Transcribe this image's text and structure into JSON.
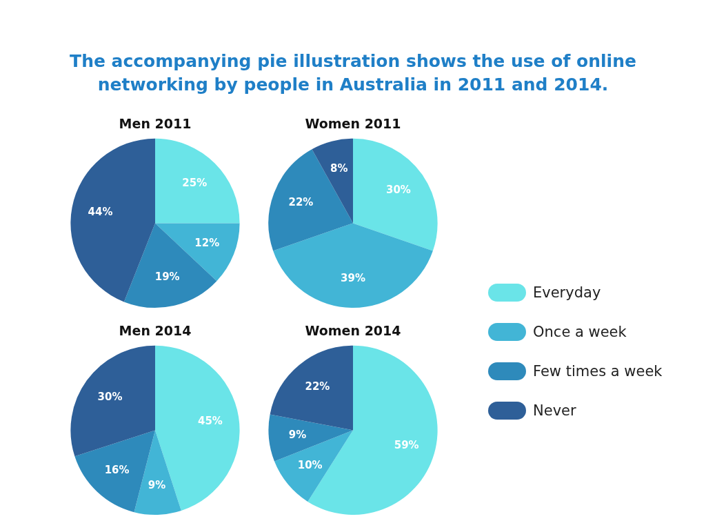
{
  "chart_data": [
    {
      "type": "pie",
      "title": "Men 2011",
      "annotations": [
        "The accompanying pie illustration shows the use of online networking by people in Australia in 2011 and 2014."
      ],
      "legend": "right",
      "categories": [
        "Everyday",
        "Once a week",
        "Few times a week",
        "Never"
      ],
      "values": [
        25,
        12,
        19,
        44
      ],
      "value_labels": [
        "25%",
        "12%",
        "19%",
        "44%"
      ],
      "colors": [
        "#6ae4e8",
        "#42b5d6",
        "#2e8abb",
        "#2e5f98"
      ]
    },
    {
      "type": "pie",
      "title": "Women 2011",
      "categories": [
        null,
        null,
        null,
        null
      ],
      "values": [
        30,
        39,
        22,
        8
      ],
      "value_labels": [
        "30%",
        "39%",
        "22%",
        "8%"
      ],
      "colors": [
        "#6ae4e8",
        "#42b5d6",
        "#2e8abb",
        "#2e5f98"
      ]
    },
    {
      "type": "pie",
      "title": "Men 2014",
      "categories": [
        null,
        null,
        null,
        null
      ],
      "values": [
        45,
        9,
        16,
        30
      ],
      "value_labels": [
        "45%",
        "9%",
        "16%",
        "30%"
      ],
      "colors": [
        "#6ae4e8",
        "#42b5d6",
        "#2e8abb",
        "#2e5f98"
      ]
    },
    {
      "type": "pie",
      "title": "Women 2014",
      "categories": [
        null,
        null,
        null,
        null
      ],
      "values": [
        59,
        10,
        9,
        22
      ],
      "value_labels": [
        "59%",
        "10%",
        "9%",
        "22%"
      ],
      "colors": [
        "#6ae4e8",
        "#42b5d6",
        "#2e8abb",
        "#2e5f98"
      ]
    }
  ]
}
